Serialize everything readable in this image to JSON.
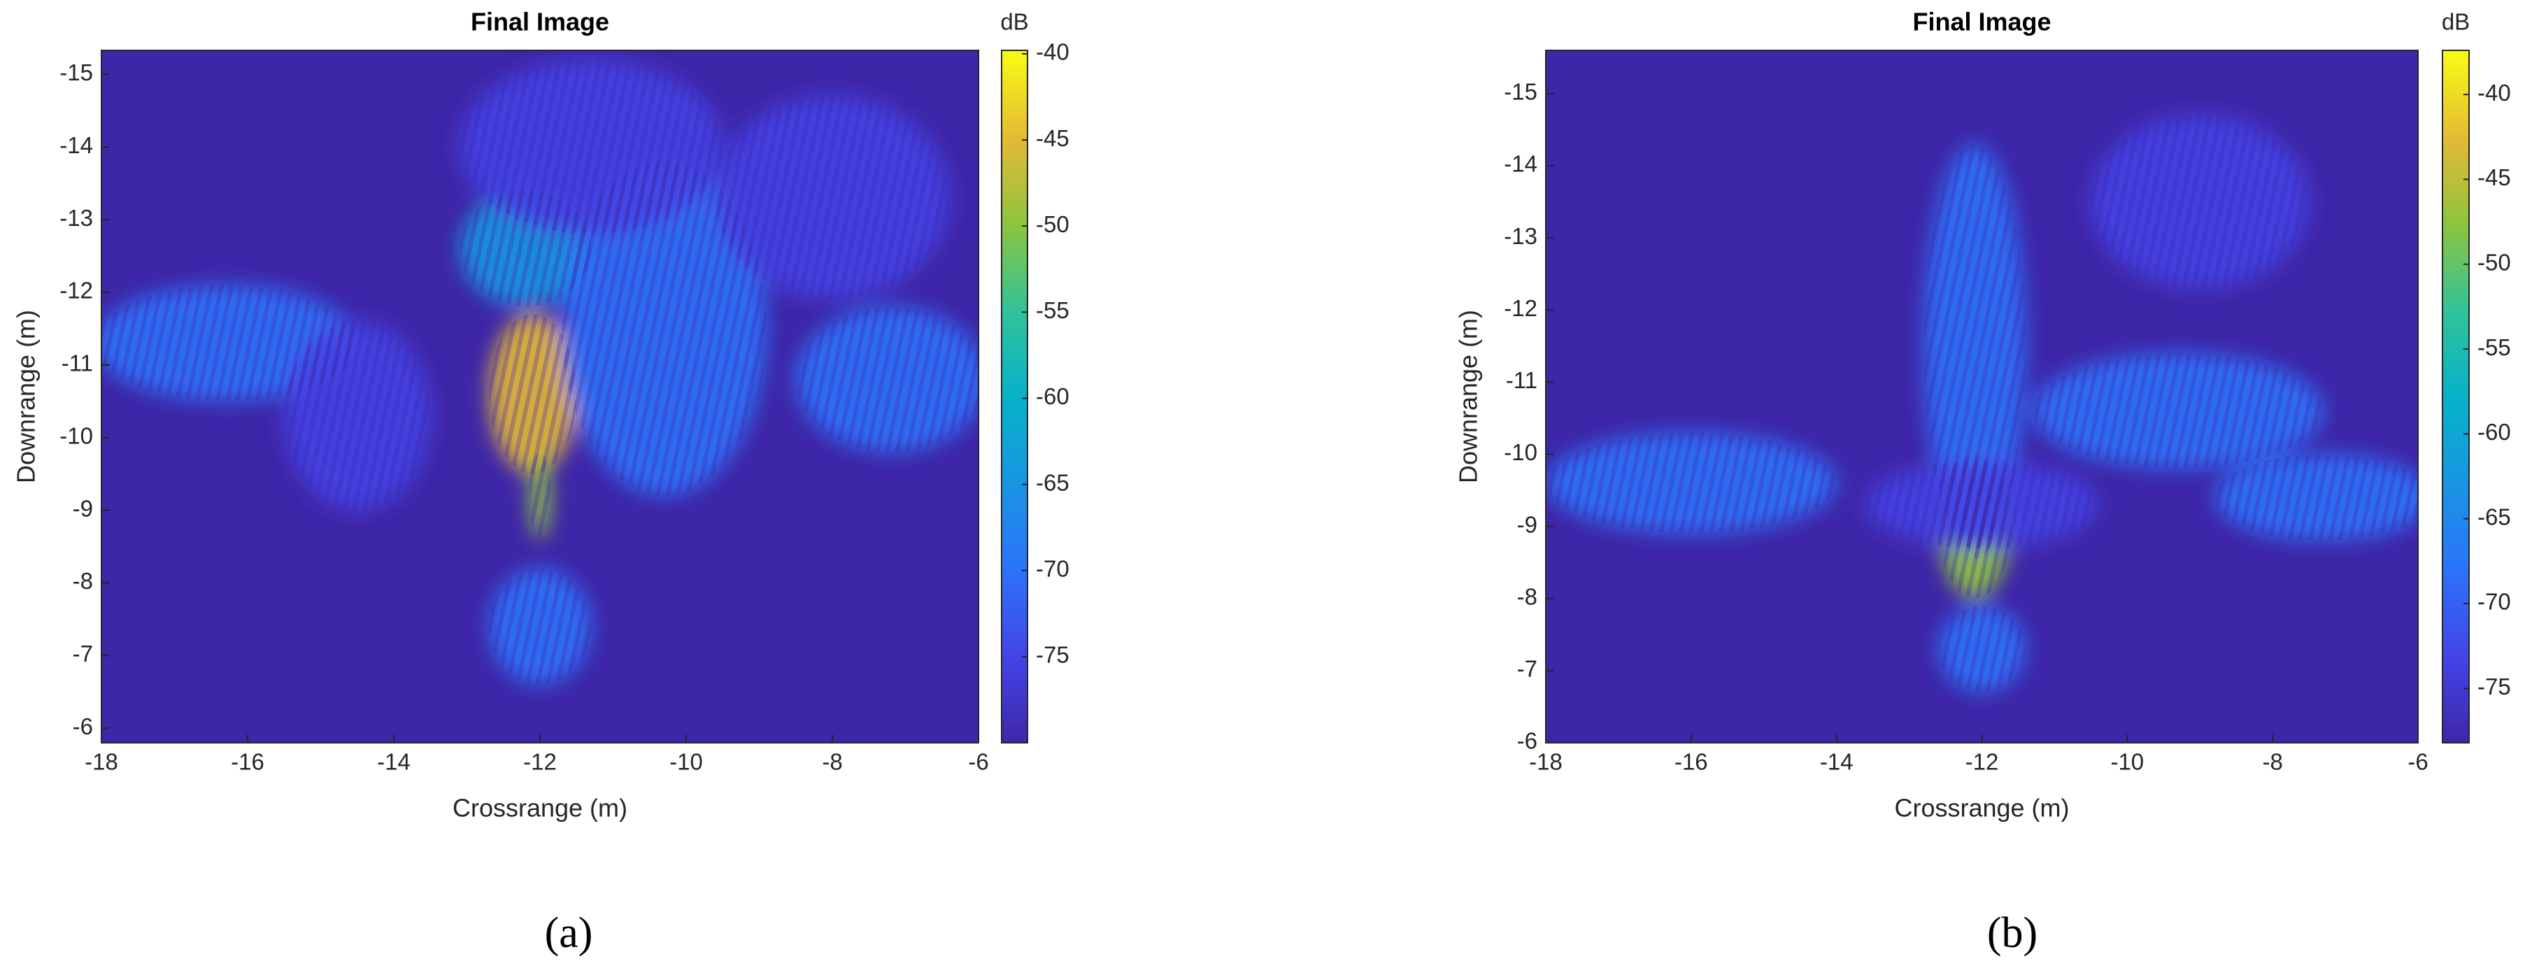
{
  "chart_data": [
    {
      "type": "image",
      "title": "Final Image",
      "x_label": "Crossrange (m)",
      "y_label": "Downrange (m)",
      "xlim": [
        -18,
        -6
      ],
      "ylim": [
        -5.8,
        -15.33
      ],
      "xticks": [
        -18,
        -16,
        -14,
        -12,
        -10,
        -8,
        -6
      ],
      "yticks": [
        -15,
        -14,
        -13,
        -12,
        -11,
        -10,
        -9,
        -8,
        -7,
        -6
      ],
      "colorbar": {
        "label": "dB",
        "clim": [
          -80,
          -39.8
        ],
        "ticks": [
          -40,
          -45,
          -50,
          -55,
          -60,
          -65,
          -70,
          -75
        ]
      },
      "panel_label": "(a)"
    },
    {
      "type": "image",
      "title": "Final Image",
      "x_label": "Crossrange (m)",
      "y_label": "Downrange (m)",
      "xlim": [
        -18,
        -6
      ],
      "ylim": [
        -6,
        -15.6
      ],
      "xticks": [
        -18,
        -16,
        -14,
        -12,
        -10,
        -8,
        -6
      ],
      "yticks": [
        -15,
        -14,
        -13,
        -12,
        -11,
        -10,
        -9,
        -8,
        -7,
        -6
      ],
      "colorbar": {
        "label": "dB",
        "clim": [
          -78.2,
          -37.4
        ],
        "ticks": [
          -40,
          -45,
          -50,
          -55,
          -60,
          -65,
          -70,
          -75
        ]
      },
      "panel_label": "(b)"
    }
  ]
}
